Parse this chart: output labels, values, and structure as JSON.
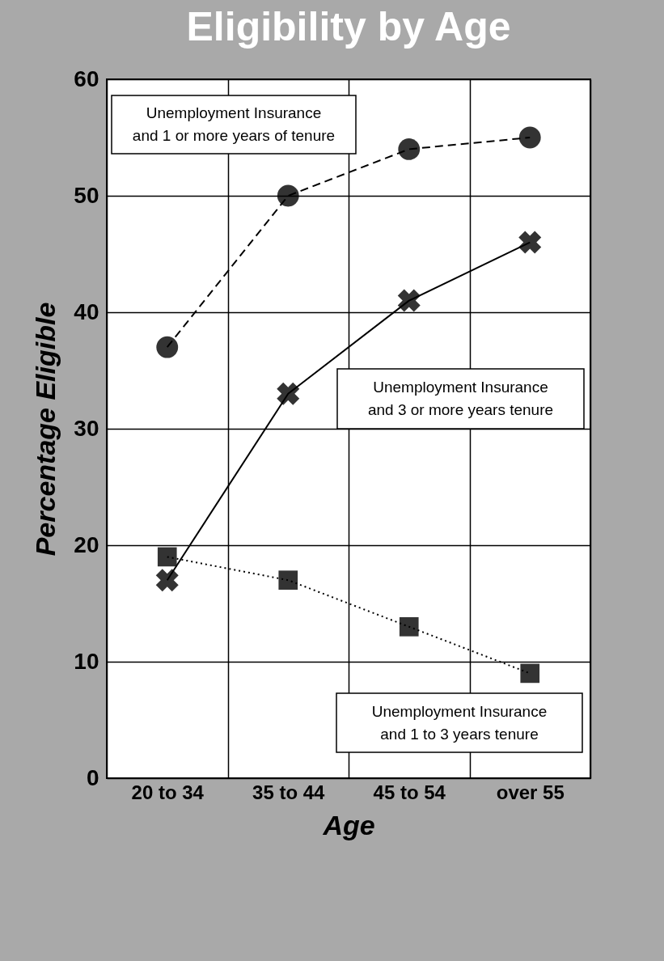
{
  "chart_data": {
    "type": "line",
    "title": "Eligibility by Age",
    "xlabel": "Age",
    "ylabel": "Percentage Eligible",
    "categories": [
      "20 to 34",
      "35 to 44",
      "45 to 54",
      "over 55"
    ],
    "series": [
      {
        "name": "Unemployment Insurance and 1 or more years of tenure",
        "color": "#000000",
        "values": [
          37,
          50,
          54,
          55
        ],
        "line_style": "dashed",
        "marker": "circle"
      },
      {
        "name": "Unemployment Insurance and 3 or more years tenure",
        "color": "#000000",
        "values": [
          17,
          33,
          41,
          46
        ],
        "line_style": "solid",
        "marker": "cross"
      },
      {
        "name": "Unemployment Insurance and 1 to 3 years tenure",
        "color": "#000000",
        "values": [
          19,
          17,
          13,
          9
        ],
        "line_style": "dotted",
        "marker": "square"
      }
    ],
    "ylim": [
      0,
      60
    ],
    "yticks": [
      0,
      10,
      20,
      30,
      40,
      50,
      60
    ],
    "grid": true,
    "legend": false
  }
}
